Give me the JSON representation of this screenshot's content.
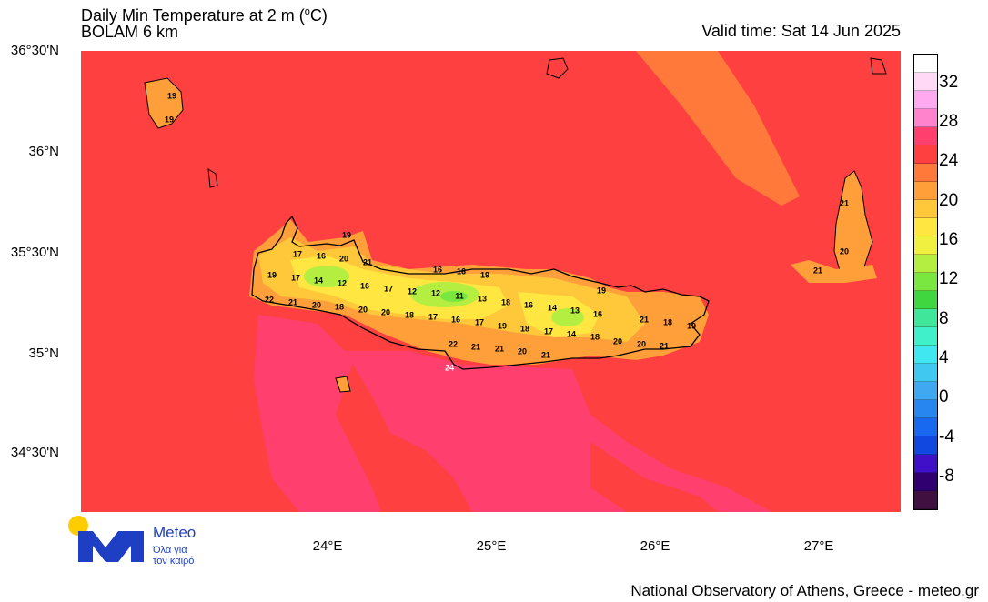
{
  "header": {
    "title_prefix": "Daily Min Temperature at 2 m (",
    "title_unit_sup": "o",
    "title_unit_suffix": "C)",
    "model": "BOLAM 6 km",
    "valid_time": "Valid time: Sat 14 Jun 2025"
  },
  "axes": {
    "lat_labels": [
      "36°30'N",
      "36°N",
      "35°30'N",
      "35°N",
      "34°30'N"
    ],
    "lon_labels": [
      "24°E",
      "25°E",
      "26°E",
      "27°E"
    ]
  },
  "colorbar": {
    "labels": [
      "32",
      "28",
      "24",
      "20",
      "16",
      "12",
      "8",
      "4",
      "0",
      "-4",
      "-8"
    ],
    "colors_top_to_bottom": [
      "#ffffff",
      "#ffd9f5",
      "#ffaaf0",
      "#ff82cc",
      "#ff3f6e",
      "#ff4040",
      "#ff7a3a",
      "#ff9f3a",
      "#ffc83a",
      "#ffe640",
      "#f0f040",
      "#b4ee40",
      "#7ae640",
      "#40d640",
      "#40e69a",
      "#40f0c8",
      "#40e6f0",
      "#40c8f0",
      "#40a8f0",
      "#2886f0",
      "#1868f0",
      "#1048e0",
      "#4010c8",
      "#300070",
      "#401040"
    ]
  },
  "map": {
    "sea_color": "#ff4040",
    "land_colors": {
      "warm": "#ffc83a",
      "mild": "#ffe640",
      "cool": "#b4ee40",
      "cold": "#7ae640",
      "hot": "#ff9f3a",
      "hottest_sea": "#ff3f6e",
      "orange_sea": "#ff7a3a"
    },
    "labels": [
      {
        "t": "19",
        "c": "19"
      },
      {
        "t": "19",
        "c": "19b"
      },
      {
        "t": "17",
        "c": "a1"
      },
      {
        "t": "16",
        "c": "a2"
      },
      {
        "t": "19",
        "c": "a3"
      },
      {
        "t": "20",
        "c": "a4"
      },
      {
        "t": "21",
        "c": "a5"
      },
      {
        "t": "19",
        "c": "b1"
      },
      {
        "t": "17",
        "c": "b2"
      },
      {
        "t": "14",
        "c": "b3"
      },
      {
        "t": "12",
        "c": "b4"
      },
      {
        "t": "16",
        "c": "b5"
      },
      {
        "t": "17",
        "c": "b6"
      },
      {
        "t": "16",
        "c": "c1"
      },
      {
        "t": "16",
        "c": "c2"
      },
      {
        "t": "19",
        "c": "c3"
      },
      {
        "t": "12",
        "c": "c4"
      },
      {
        "t": "12",
        "c": "c5"
      },
      {
        "t": "11",
        "c": "c6"
      },
      {
        "t": "13",
        "c": "c7"
      },
      {
        "t": "22",
        "c": "d1"
      },
      {
        "t": "21",
        "c": "d2"
      },
      {
        "t": "20",
        "c": "d3"
      },
      {
        "t": "18",
        "c": "d4"
      },
      {
        "t": "20",
        "c": "d5"
      },
      {
        "t": "20",
        "c": "d6"
      },
      {
        "t": "18",
        "c": "d7"
      },
      {
        "t": "17",
        "c": "d8"
      },
      {
        "t": "16",
        "c": "d9"
      },
      {
        "t": "17",
        "c": "d10"
      },
      {
        "t": "18",
        "c": "e1"
      },
      {
        "t": "16",
        "c": "e2"
      },
      {
        "t": "14",
        "c": "e3"
      },
      {
        "t": "13",
        "c": "e4"
      },
      {
        "t": "16",
        "c": "e5"
      },
      {
        "t": "19",
        "c": "e6"
      },
      {
        "t": "19",
        "c": "f1"
      },
      {
        "t": "18",
        "c": "f2"
      },
      {
        "t": "17",
        "c": "f3"
      },
      {
        "t": "14",
        "c": "f4"
      },
      {
        "t": "18",
        "c": "f5"
      },
      {
        "t": "20",
        "c": "f6"
      },
      {
        "t": "20",
        "c": "f7"
      },
      {
        "t": "21",
        "c": "f8"
      },
      {
        "t": "21",
        "c": "f9"
      },
      {
        "t": "18",
        "c": "f10"
      },
      {
        "t": "19",
        "c": "f11"
      },
      {
        "t": "22",
        "c": "g1"
      },
      {
        "t": "21",
        "c": "g2"
      },
      {
        "t": "21",
        "c": "g3"
      },
      {
        "t": "20",
        "c": "g4"
      },
      {
        "t": "21",
        "c": "g5"
      },
      {
        "t": "24",
        "c": "g6"
      },
      {
        "t": "21",
        "c": "h1"
      },
      {
        "t": "20",
        "c": "h2"
      },
      {
        "t": "21",
        "c": "h3"
      }
    ]
  },
  "logo": {
    "name": "Meteo",
    "tagline_1": "Όλα για",
    "tagline_2": "τον καιρό"
  },
  "footer": {
    "credit": "National Observatory of Athens, Greece - meteo.gr"
  }
}
